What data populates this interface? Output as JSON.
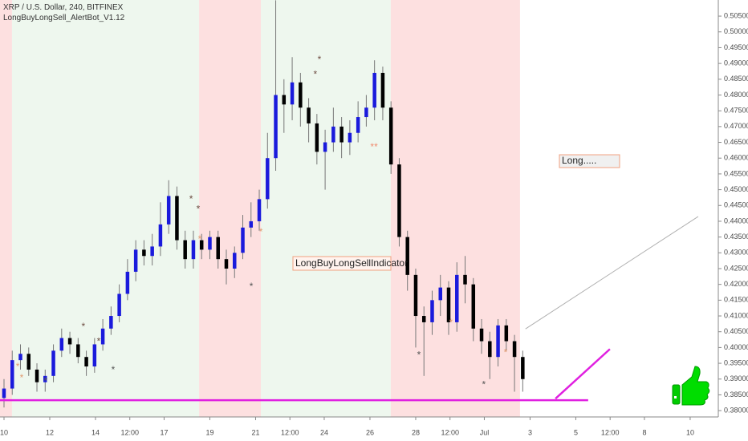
{
  "chart_data": {
    "type": "candlestick",
    "title": "XRP / U.S. Dollar, 240, BITFINEX",
    "indicator_name": "LongBuyLongSell_AlertBot_V1.12",
    "indicator_label": "LongBuyLongSellIndicator",
    "signal_label": "Long.....",
    "up_color": "#1a1adc",
    "down_color": "#000000",
    "grid": false,
    "xlim": [
      -0.175,
      31.23
    ],
    "ylim": [
      0.378,
      0.5101
    ],
    "xticks": [
      {
        "value": 0,
        "label": "10"
      },
      {
        "value": 2,
        "label": "12"
      },
      {
        "value": 4,
        "label": "14"
      },
      {
        "value": 5.5,
        "label": "12:00"
      },
      {
        "value": 7,
        "label": "17"
      },
      {
        "value": 9,
        "label": "19"
      },
      {
        "value": 11,
        "label": "21"
      },
      {
        "value": 12.5,
        "label": "12:00"
      },
      {
        "value": 14,
        "label": "24"
      },
      {
        "value": 16,
        "label": "26"
      },
      {
        "value": 18,
        "label": "28"
      },
      {
        "value": 19.5,
        "label": "12:00"
      },
      {
        "value": 21,
        "label": "Jul"
      },
      {
        "value": 23,
        "label": "3"
      },
      {
        "value": 25,
        "label": "5"
      },
      {
        "value": 26.5,
        "label": "12:00"
      },
      {
        "value": 28,
        "label": "8"
      },
      {
        "value": 30,
        "label": "10"
      }
    ],
    "yticks": [
      {
        "value": 0.38,
        "label": "0.38000"
      },
      {
        "value": 0.385,
        "label": "0.38500"
      },
      {
        "value": 0.39,
        "label": "0.39000"
      },
      {
        "value": 0.395,
        "label": "0.39500"
      },
      {
        "value": 0.4,
        "label": "0.40000"
      },
      {
        "value": 0.405,
        "label": "0.40500"
      },
      {
        "value": 0.41,
        "label": "0.41000"
      },
      {
        "value": 0.415,
        "label": "0.41500"
      },
      {
        "value": 0.42,
        "label": "0.42000"
      },
      {
        "value": 0.425,
        "label": "0.42500"
      },
      {
        "value": 0.43,
        "label": "0.43000"
      },
      {
        "value": 0.435,
        "label": "0.43500"
      },
      {
        "value": 0.44,
        "label": "0.44000"
      },
      {
        "value": 0.445,
        "label": "0.44500"
      },
      {
        "value": 0.45,
        "label": "0.45000"
      },
      {
        "value": 0.455,
        "label": "0.45500"
      },
      {
        "value": 0.46,
        "label": "0.46000"
      },
      {
        "value": 0.465,
        "label": "0.46500"
      },
      {
        "value": 0.47,
        "label": "0.47000"
      },
      {
        "value": 0.475,
        "label": "0.47500"
      },
      {
        "value": 0.48,
        "label": "0.48000"
      },
      {
        "value": 0.485,
        "label": "0.48500"
      },
      {
        "value": 0.49,
        "label": "0.49000"
      },
      {
        "value": 0.495,
        "label": "0.49500"
      },
      {
        "value": 0.5,
        "label": "0.50000"
      },
      {
        "value": 0.505,
        "label": "0.50500"
      }
    ],
    "zones": [
      {
        "start": -0.175,
        "end": 0.35,
        "color": "#fde0e0"
      },
      {
        "start": 0.35,
        "end": 8.53,
        "color": "#eef7ee"
      },
      {
        "start": 8.53,
        "end": 11.23,
        "color": "#fde0e0"
      },
      {
        "start": 11.23,
        "end": 16.91,
        "color": "#eef7ee"
      },
      {
        "start": 16.91,
        "end": 22.56,
        "color": "#fde0e0"
      }
    ],
    "candles": {
      "x": [
        0,
        0.36,
        0.72,
        1.08,
        1.44,
        1.8,
        2.16,
        2.52,
        2.88,
        3.24,
        3.6,
        3.96,
        4.32,
        4.68,
        5.04,
        5.4,
        5.76,
        6.12,
        6.48,
        6.84,
        7.2,
        7.56,
        7.92,
        8.28,
        8.64,
        9,
        9.36,
        9.72,
        10.08,
        10.44,
        10.8,
        11.16,
        11.52,
        11.88,
        12.24,
        12.6,
        12.96,
        13.32,
        13.68,
        14.04,
        14.4,
        14.76,
        15.12,
        15.48,
        15.84,
        16.2,
        16.56,
        16.92,
        17.28,
        17.64,
        18,
        18.36,
        18.72,
        19.08,
        19.44,
        19.8,
        20.16,
        20.52,
        20.88,
        21.24,
        21.6,
        21.96,
        22.32,
        22.68
      ],
      "open": [
        0.384,
        0.387,
        0.396,
        0.398,
        0.393,
        0.389,
        0.391,
        0.399,
        0.403,
        0.401,
        0.397,
        0.394,
        0.401,
        0.406,
        0.41,
        0.417,
        0.424,
        0.431,
        0.429,
        0.432,
        0.439,
        0.448,
        0.434,
        0.428,
        0.434,
        0.431,
        0.435,
        0.428,
        0.425,
        0.43,
        0.438,
        0.44,
        0.447,
        0.46,
        0.48,
        0.477,
        0.484,
        0.476,
        0.471,
        0.462,
        0.465,
        0.47,
        0.465,
        0.468,
        0.473,
        0.476,
        0.487,
        0.476,
        0.458,
        0.435,
        0.423,
        0.41,
        0.408,
        0.415,
        0.419,
        0.408,
        0.423,
        0.42,
        0.406,
        0.402,
        0.397,
        0.407,
        0.402,
        0.397
      ],
      "high": [
        0.39,
        0.399,
        0.401,
        0.4,
        0.395,
        0.393,
        0.401,
        0.406,
        0.405,
        0.403,
        0.399,
        0.403,
        0.409,
        0.413,
        0.42,
        0.428,
        0.434,
        0.434,
        0.436,
        0.446,
        0.453,
        0.451,
        0.437,
        0.437,
        0.436,
        0.437,
        0.437,
        0.431,
        0.432,
        0.442,
        0.446,
        0.45,
        0.468,
        0.51,
        0.485,
        0.492,
        0.487,
        0.479,
        0.474,
        0.469,
        0.476,
        0.473,
        0.472,
        0.478,
        0.48,
        0.491,
        0.489,
        0.478,
        0.46,
        0.437,
        0.425,
        0.413,
        0.418,
        0.423,
        0.421,
        0.427,
        0.429,
        0.422,
        0.409,
        0.405,
        0.409,
        0.409,
        0.404,
        0.399
      ],
      "low": [
        0.381,
        0.385,
        0.393,
        0.391,
        0.386,
        0.386,
        0.389,
        0.397,
        0.398,
        0.395,
        0.391,
        0.392,
        0.399,
        0.404,
        0.408,
        0.415,
        0.421,
        0.426,
        0.426,
        0.429,
        0.436,
        0.431,
        0.425,
        0.425,
        0.428,
        0.428,
        0.425,
        0.42,
        0.422,
        0.428,
        0.435,
        0.437,
        0.444,
        0.456,
        0.468,
        0.472,
        0.47,
        0.465,
        0.458,
        0.45,
        0.462,
        0.46,
        0.461,
        0.465,
        0.47,
        0.472,
        0.472,
        0.455,
        0.432,
        0.418,
        0.4,
        0.391,
        0.404,
        0.41,
        0.404,
        0.405,
        0.414,
        0.402,
        0.398,
        0.39,
        0.394,
        0.399,
        0.386,
        0.386
      ],
      "close": [
        0.387,
        0.396,
        0.398,
        0.393,
        0.389,
        0.391,
        0.399,
        0.403,
        0.401,
        0.397,
        0.394,
        0.401,
        0.406,
        0.41,
        0.417,
        0.424,
        0.431,
        0.429,
        0.432,
        0.439,
        0.448,
        0.434,
        0.428,
        0.434,
        0.431,
        0.435,
        0.428,
        0.425,
        0.43,
        0.438,
        0.44,
        0.447,
        0.46,
        0.48,
        0.477,
        0.484,
        0.476,
        0.471,
        0.462,
        0.465,
        0.47,
        0.465,
        0.468,
        0.473,
        0.476,
        0.487,
        0.476,
        0.458,
        0.435,
        0.423,
        0.41,
        0.408,
        0.415,
        0.419,
        0.408,
        0.423,
        0.42,
        0.406,
        0.402,
        0.397,
        0.407,
        0.402,
        0.397,
        0.39
      ]
    },
    "markers": [
      {
        "x": 0.6,
        "price": 0.3945,
        "symbol": "*",
        "color": "#e09a70"
      },
      {
        "x": 0.77,
        "price": 0.391,
        "symbol": "*",
        "color": "#e09a70"
      },
      {
        "x": 1.82,
        "price": 0.39,
        "symbol": "*",
        "color": "#555555"
      },
      {
        "x": 3.47,
        "price": 0.4072,
        "symbol": "*",
        "color": "#6d4c41"
      },
      {
        "x": 4.14,
        "price": 0.4026,
        "symbol": "*",
        "color": "#6d4c41"
      },
      {
        "x": 4.77,
        "price": 0.3935,
        "symbol": "*",
        "color": "#555555"
      },
      {
        "x": 8.18,
        "price": 0.4476,
        "symbol": "*",
        "color": "#6d4c41"
      },
      {
        "x": 8.49,
        "price": 0.4445,
        "symbol": "*",
        "color": "#6d4c41"
      },
      {
        "x": 8.56,
        "price": 0.4349,
        "symbol": "*",
        "color": "#e09a70"
      },
      {
        "x": 10.81,
        "price": 0.4199,
        "symbol": "*",
        "color": "#555555"
      },
      {
        "x": 11.23,
        "price": 0.4372,
        "symbol": "*",
        "color": "#e09a70"
      },
      {
        "x": 13.61,
        "price": 0.4872,
        "symbol": "*",
        "color": "#6d4c41"
      },
      {
        "x": 13.79,
        "price": 0.4918,
        "symbol": "*",
        "color": "#6d4c41"
      },
      {
        "x": 16.18,
        "price": 0.4641,
        "symbol": "**",
        "color": "#f08c70"
      },
      {
        "x": 18.14,
        "price": 0.3983,
        "symbol": "*",
        "color": "#555555"
      },
      {
        "x": 19.54,
        "price": 0.4085,
        "symbol": "*",
        "color": "#e09a70"
      },
      {
        "x": 20.98,
        "price": 0.3889,
        "symbol": "*",
        "color": "#555555"
      },
      {
        "x": 21.93,
        "price": 0.399,
        "symbol": "*",
        "color": "#e09a70"
      }
    ],
    "lines": [
      {
        "x": [
          -0.175,
          25.54
        ],
        "y": [
          0.3833,
          0.3833
        ],
        "color": "#e020e0",
        "width": 2.5
      },
      {
        "x": [
          24.11,
          26.49
        ],
        "y": [
          0.3838,
          0.3995
        ],
        "color": "#e020e0",
        "width": 2.5
      },
      {
        "x": [
          22.8,
          30.35
        ],
        "y": [
          0.4059,
          0.4415
        ],
        "color": "#b0b0b0",
        "width": 1
      }
    ]
  }
}
